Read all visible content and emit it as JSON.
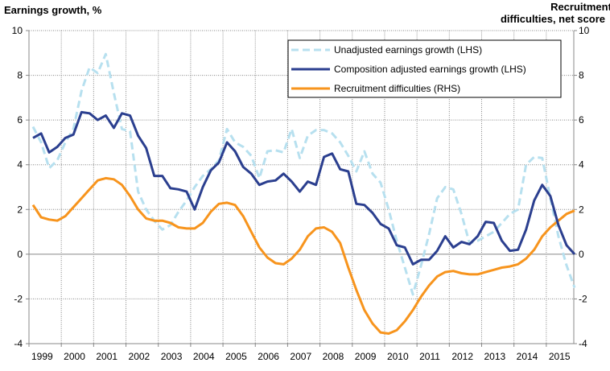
{
  "chart_data": {
    "type": "line",
    "left_axis_title": "Earnings growth, %",
    "right_axis_title": [
      "Recruitment",
      "difficulties, net score"
    ],
    "ylim_left": [
      -4,
      10
    ],
    "ylim_right": [
      -4,
      10
    ],
    "y_ticks": [
      "10",
      "8",
      "6",
      "4",
      "2",
      "0",
      "-2",
      "-4"
    ],
    "x_tick_labels": [
      "1999",
      "2000",
      "2001",
      "2002",
      "2003",
      "2004",
      "2005",
      "2006",
      "2007",
      "2008",
      "2009",
      "2010",
      "2011",
      "2012",
      "2013",
      "2014",
      "2015"
    ],
    "xlim": [
      1999,
      2015.85
    ],
    "grid": true,
    "legend_placement": "top-right",
    "x": [
      1999.125,
      1999.375,
      1999.625,
      1999.875,
      2000.125,
      2000.375,
      2000.625,
      2000.875,
      2001.125,
      2001.375,
      2001.625,
      2001.875,
      2002.125,
      2002.375,
      2002.625,
      2002.875,
      2003.125,
      2003.375,
      2003.625,
      2003.875,
      2004.125,
      2004.375,
      2004.625,
      2004.875,
      2005.125,
      2005.375,
      2005.625,
      2005.875,
      2006.125,
      2006.375,
      2006.625,
      2006.875,
      2007.125,
      2007.375,
      2007.625,
      2007.875,
      2008.125,
      2008.375,
      2008.625,
      2008.875,
      2009.125,
      2009.375,
      2009.625,
      2009.875,
      2010.125,
      2010.375,
      2010.625,
      2010.875,
      2011.125,
      2011.375,
      2011.625,
      2011.875,
      2012.125,
      2012.375,
      2012.625,
      2012.875,
      2013.125,
      2013.375,
      2013.625,
      2013.875,
      2014.125,
      2014.375,
      2014.625,
      2014.875,
      2015.125,
      2015.375,
      2015.625,
      2015.875
    ],
    "series": [
      {
        "name": "Unadjusted earnings  growth (LHS)",
        "axis": "left",
        "color": "#b7e0ef",
        "dashed": true,
        "values": [
          5.7,
          5.0,
          3.85,
          4.2,
          5.0,
          5.6,
          7.3,
          8.35,
          8.1,
          8.95,
          7.2,
          5.6,
          5.5,
          2.8,
          2.0,
          1.5,
          1.1,
          1.3,
          1.9,
          2.4,
          3.0,
          3.5,
          3.8,
          4.2,
          5.6,
          5.0,
          4.8,
          4.4,
          3.4,
          4.6,
          4.65,
          4.55,
          5.6,
          4.3,
          5.3,
          5.55,
          5.55,
          5.4,
          5.0,
          4.4,
          3.7,
          4.6,
          3.6,
          3.2,
          2.0,
          0.6,
          -0.6,
          -1.8,
          -0.5,
          0.9,
          2.5,
          3.0,
          2.9,
          1.8,
          0.5,
          0.6,
          0.8,
          1.0,
          1.4,
          1.8,
          2.0,
          4.0,
          4.35,
          4.3,
          2.5,
          0.8,
          -0.5,
          -1.5
        ]
      },
      {
        "name": "Composition adjusted earnings growth (LHS)",
        "axis": "left",
        "color": "#2b3f8f",
        "dashed": false,
        "values": [
          5.2,
          5.4,
          4.55,
          4.8,
          5.2,
          5.35,
          6.35,
          6.3,
          6.0,
          6.2,
          5.65,
          6.3,
          6.2,
          5.3,
          4.75,
          3.5,
          3.5,
          2.95,
          2.9,
          2.8,
          2.0,
          3.0,
          3.75,
          4.1,
          5.0,
          4.6,
          3.9,
          3.6,
          3.1,
          3.25,
          3.3,
          3.6,
          3.25,
          2.8,
          3.25,
          3.1,
          4.35,
          4.5,
          3.8,
          3.7,
          2.25,
          2.2,
          1.85,
          1.35,
          1.15,
          0.4,
          0.3,
          -0.45,
          -0.25,
          -0.25,
          0.15,
          0.8,
          0.3,
          0.55,
          0.45,
          0.8,
          1.45,
          1.4,
          0.6,
          0.15,
          0.2,
          1.1,
          2.4,
          3.1,
          2.6,
          1.3,
          0.4,
          0.0
        ]
      },
      {
        "name": "Recruitment  difficulties (RHS)",
        "axis": "right",
        "color": "#f7941d",
        "dashed": false,
        "values": [
          2.2,
          1.65,
          1.55,
          1.5,
          1.7,
          2.1,
          2.5,
          2.9,
          3.3,
          3.4,
          3.35,
          3.1,
          2.6,
          2.0,
          1.6,
          1.5,
          1.5,
          1.4,
          1.2,
          1.15,
          1.15,
          1.4,
          1.9,
          2.25,
          2.3,
          2.2,
          1.7,
          1.0,
          0.3,
          -0.15,
          -0.4,
          -0.45,
          -0.2,
          0.2,
          0.8,
          1.15,
          1.2,
          1.0,
          0.5,
          -0.6,
          -1.6,
          -2.5,
          -3.1,
          -3.5,
          -3.55,
          -3.4,
          -3.0,
          -2.5,
          -1.9,
          -1.4,
          -1.0,
          -0.8,
          -0.75,
          -0.85,
          -0.9,
          -0.9,
          -0.8,
          -0.7,
          -0.6,
          -0.55,
          -0.45,
          -0.2,
          0.2,
          0.8,
          1.2,
          1.5,
          1.8,
          1.95
        ]
      }
    ]
  }
}
